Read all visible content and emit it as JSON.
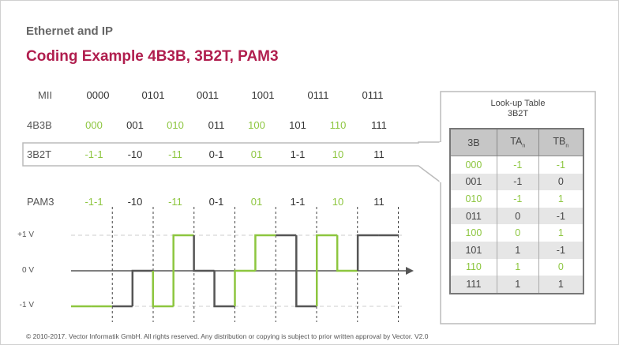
{
  "header": {
    "section_title": "Ethernet and IP",
    "slide_title": "Coding Example 4B3B, 3B2T, PAM3"
  },
  "rows": {
    "mii": {
      "label": "MII",
      "values": [
        "0000",
        "0101",
        "0011",
        "1001",
        "0111",
        "0111"
      ]
    },
    "b4b3": {
      "label": "4B3B",
      "values": [
        "000",
        "001",
        "010",
        "011",
        "100",
        "101",
        "110",
        "111"
      ]
    },
    "b3b2t": {
      "label": "3B2T",
      "values": [
        "-1-1",
        "-10",
        "-11",
        "0-1",
        "01",
        "1-1",
        "10",
        "11"
      ]
    },
    "pam3": {
      "label": "PAM3",
      "values": [
        "-1-1",
        "-10",
        "-11",
        "0-1",
        "01",
        "1-1",
        "10",
        "11"
      ]
    }
  },
  "voltage_labels": [
    "+1 V",
    "0 V",
    "-1 V"
  ],
  "lookup": {
    "title_line1": "Look-up Table",
    "title_line2": "3B2T",
    "col_3b": "3B",
    "col_ta": "TA",
    "col_ta_sub": "n",
    "col_tb": "TB",
    "col_tb_sub": "n",
    "rows": [
      [
        "000",
        "-1",
        "-1"
      ],
      [
        "001",
        "-1",
        "0"
      ],
      [
        "010",
        "-1",
        "1"
      ],
      [
        "011",
        "0",
        "-1"
      ],
      [
        "100",
        "0",
        "1"
      ],
      [
        "101",
        "1",
        "-1"
      ],
      [
        "110",
        "1",
        "0"
      ],
      [
        "111",
        "1",
        "1"
      ]
    ]
  },
  "signal_levels": [
    -1,
    -1,
    -1,
    0,
    -1,
    1,
    0,
    -1,
    0,
    1,
    1,
    -1,
    1,
    0,
    1,
    1
  ],
  "colors": {
    "green": "#8dc63f",
    "dark": "#555555",
    "title_red": "#b01e4e"
  },
  "footer": "© 2010-2017. Vector Informatik GmbH. All rights reserved. Any distribution or copying is subject to prior written approval by Vector. V2.0"
}
